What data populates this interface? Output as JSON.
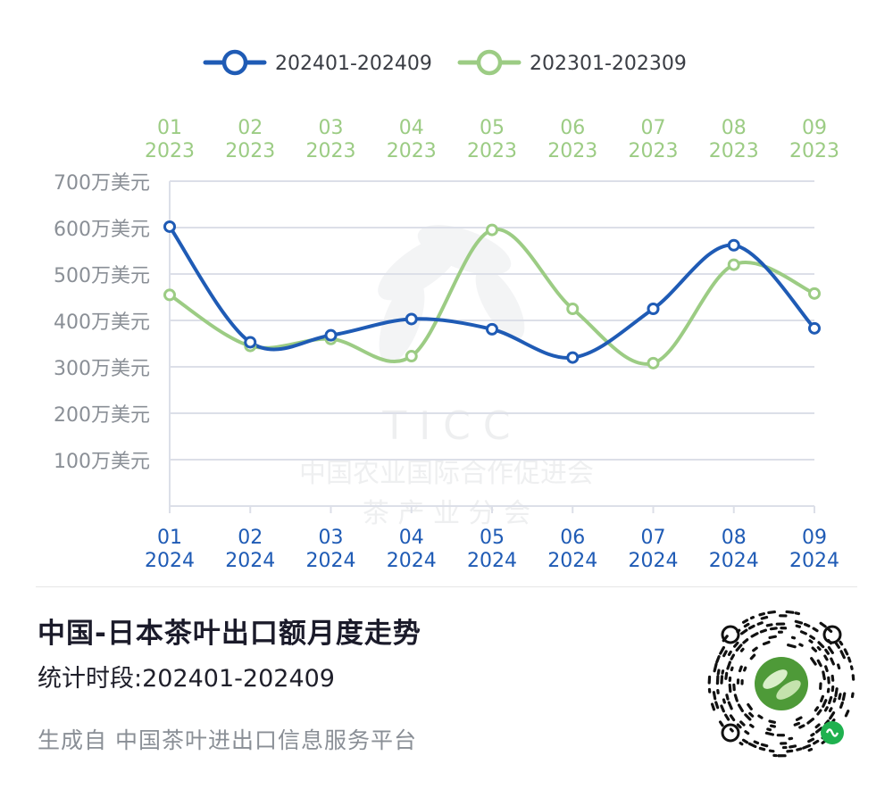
{
  "chart_data": {
    "type": "line",
    "title": "中国-日本茶叶出口额月度走势",
    "subtitle": "统计时段:202401-202409",
    "y_ticks": [
      "100万美元",
      "200万美元",
      "300万美元",
      "400万美元",
      "500万美元",
      "600万美元",
      "700万美元"
    ],
    "y_tick_values": [
      100,
      200,
      300,
      400,
      500,
      600,
      700
    ],
    "ylim": [
      0,
      700
    ],
    "y_unit": "万美元",
    "grid": true,
    "legend_position": "top",
    "series": [
      {
        "name": "202401-202409",
        "color": "#1f5bb5",
        "axis": "bottom",
        "x_months": [
          "01",
          "02",
          "03",
          "04",
          "05",
          "06",
          "07",
          "08",
          "09"
        ],
        "x_year": "2024",
        "values": [
          602,
          353,
          368,
          403,
          381,
          320,
          425,
          562,
          383
        ]
      },
      {
        "name": "202301-202309",
        "color": "#9ccc84",
        "axis": "top",
        "x_months": [
          "01",
          "02",
          "03",
          "04",
          "05",
          "06",
          "07",
          "08",
          "09"
        ],
        "x_year": "2023",
        "values": [
          455,
          345,
          360,
          323,
          595,
          425,
          308,
          520,
          458
        ]
      }
    ]
  },
  "watermark": {
    "line1": "T I C C",
    "line2": "中国农业国际合作促进会",
    "line3": "茶 产 业 分 会"
  },
  "footer": {
    "title": "中国-日本茶叶出口额月度走势",
    "period": "统计时段:202401-202409",
    "source": "生成自 中国茶叶进出口信息服务平台"
  },
  "colors": {
    "series_2024": "#1f5bb5",
    "series_2023": "#9ccc84",
    "grid": "#dcdfe8",
    "axis_text": "#8a8f96"
  },
  "icons": {
    "qr": "mini-program-qr-code-icon"
  }
}
